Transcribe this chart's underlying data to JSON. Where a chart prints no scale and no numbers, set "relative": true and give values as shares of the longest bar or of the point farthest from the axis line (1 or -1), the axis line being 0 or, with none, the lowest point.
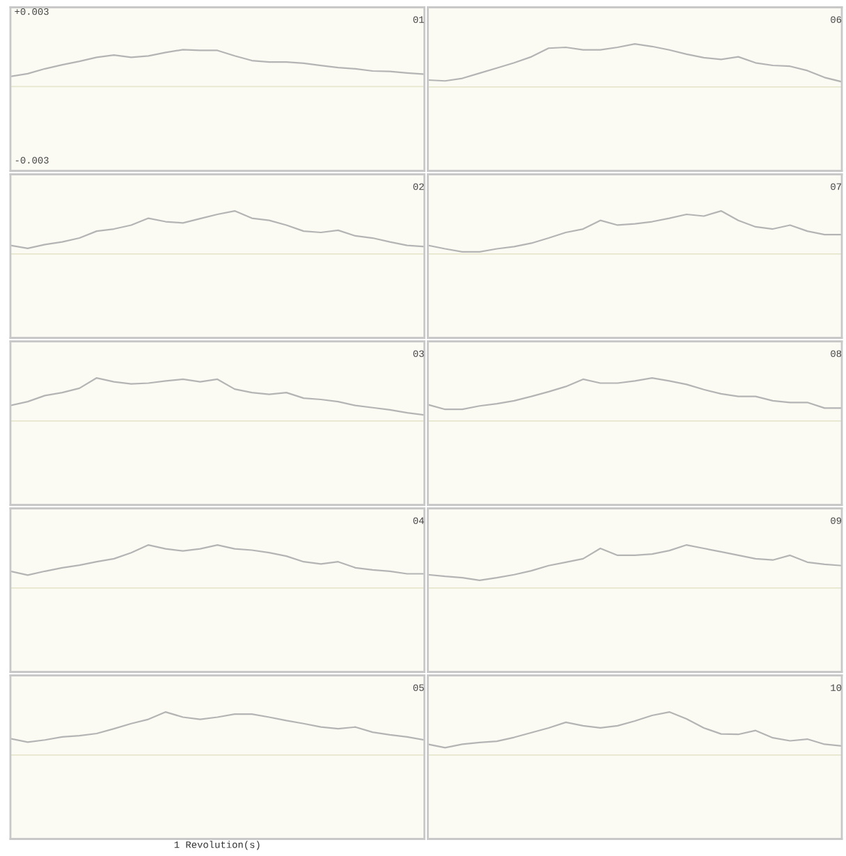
{
  "chart_data": [
    {
      "type": "line",
      "title": "01",
      "categories": [
        null,
        null,
        null,
        null,
        null,
        null,
        null,
        null,
        null,
        null,
        null,
        null,
        null,
        null,
        null,
        null,
        null,
        null,
        null,
        null,
        null,
        null,
        null,
        null,
        null
      ],
      "series": [
        {
          "color": "#b4b4b4",
          "values": [
            0.00041,
            0.00052,
            0.00072,
            0.00088,
            0.00102,
            0.00118,
            0.00127,
            0.00118,
            0.00124,
            0.00138,
            0.00149,
            0.00146,
            0.00146,
            0.00124,
            0.00105,
            0.00099,
            0.00099,
            0.00094,
            0.00085,
            0.00077,
            0.00072,
            0.00063,
            0.00061,
            0.00055,
            0.0005
          ]
        }
      ],
      "ylim": [
        -0.0034,
        0.0032
      ],
      "yticks": [
        {
          "value": 0.003,
          "label": "+0.003"
        },
        {
          "value": -0.003,
          "label": "-0.003"
        }
      ],
      "tick_labels": "y",
      "ref_lines": [
        {
          "axis": "y",
          "value": 0,
          "color": "#e6e6cc"
        }
      ]
    },
    {
      "type": "line",
      "title": "06",
      "relative": true,
      "categories": [
        null,
        null,
        null,
        null,
        null,
        null,
        null,
        null,
        null,
        null,
        null,
        null,
        null,
        null,
        null,
        null,
        null,
        null,
        null,
        null,
        null,
        null,
        null,
        null,
        null
      ],
      "series": [
        {
          "color": "#b4b4b4",
          "values": [
            0.16,
            0.14,
            0.2,
            0.32,
            0.44,
            0.56,
            0.7,
            0.9,
            0.92,
            0.86,
            0.86,
            0.92,
            1,
            0.94,
            0.86,
            0.76,
            0.68,
            0.64,
            0.7,
            0.56,
            0.5,
            0.48,
            0.38,
            0.22,
            0.12
          ]
        }
      ],
      "tick_labels": false,
      "ref_lines": [
        {
          "axis": "y",
          "value": 0,
          "color": "#e6e6cc"
        }
      ]
    },
    {
      "type": "line",
      "title": "02",
      "relative": true,
      "categories": [
        null,
        null,
        null,
        null,
        null,
        null,
        null,
        null,
        null,
        null,
        null,
        null,
        null,
        null,
        null,
        null,
        null,
        null,
        null,
        null,
        null,
        null,
        null,
        null,
        null
      ],
      "series": [
        {
          "color": "#b4b4b4",
          "values": [
            0.2,
            0.13,
            0.22,
            0.28,
            0.37,
            0.53,
            0.58,
            0.67,
            0.83,
            0.75,
            0.72,
            0.82,
            0.92,
            1,
            0.83,
            0.78,
            0.67,
            0.53,
            0.5,
            0.55,
            0.42,
            0.37,
            0.28,
            0.2,
            0.17
          ]
        }
      ],
      "tick_labels": false,
      "ref_lines": [
        {
          "axis": "y",
          "value": 0,
          "color": "#e6e6cc"
        }
      ]
    },
    {
      "type": "line",
      "title": "07",
      "relative": true,
      "categories": [
        null,
        null,
        null,
        null,
        null,
        null,
        null,
        null,
        null,
        null,
        null,
        null,
        null,
        null,
        null,
        null,
        null,
        null,
        null,
        null,
        null,
        null,
        null,
        null,
        null
      ],
      "series": [
        {
          "color": "#b4b4b4",
          "values": [
            0.2,
            0.12,
            0.05,
            0.05,
            0.12,
            0.17,
            0.25,
            0.37,
            0.5,
            0.58,
            0.78,
            0.67,
            0.7,
            0.75,
            0.83,
            0.92,
            0.88,
            1,
            0.78,
            0.63,
            0.58,
            0.67,
            0.53,
            0.45,
            0.45
          ]
        }
      ],
      "tick_labels": false,
      "ref_lines": [
        {
          "axis": "y",
          "value": 0,
          "color": "#e6e6cc"
        }
      ]
    },
    {
      "type": "line",
      "title": "03",
      "relative": true,
      "categories": [
        null,
        null,
        null,
        null,
        null,
        null,
        null,
        null,
        null,
        null,
        null,
        null,
        null,
        null,
        null,
        null,
        null,
        null,
        null,
        null,
        null,
        null,
        null,
        null,
        null
      ],
      "series": [
        {
          "color": "#b4b4b4",
          "values": [
            0.36,
            0.45,
            0.59,
            0.66,
            0.76,
            1,
            0.91,
            0.86,
            0.88,
            0.93,
            0.97,
            0.91,
            0.97,
            0.74,
            0.66,
            0.62,
            0.66,
            0.53,
            0.5,
            0.45,
            0.36,
            0.31,
            0.26,
            0.19,
            0.14
          ]
        }
      ],
      "tick_labels": false,
      "ref_lines": [
        {
          "axis": "y",
          "value": 0,
          "color": "#e6e6cc"
        }
      ]
    },
    {
      "type": "line",
      "title": "08",
      "relative": true,
      "categories": [
        null,
        null,
        null,
        null,
        null,
        null,
        null,
        null,
        null,
        null,
        null,
        null,
        null,
        null,
        null,
        null,
        null,
        null,
        null,
        null,
        null,
        null,
        null,
        null,
        null
      ],
      "series": [
        {
          "color": "#b4b4b4",
          "values": [
            0.38,
            0.27,
            0.27,
            0.35,
            0.4,
            0.47,
            0.57,
            0.68,
            0.8,
            0.97,
            0.88,
            0.88,
            0.93,
            1,
            0.93,
            0.85,
            0.73,
            0.63,
            0.57,
            0.57,
            0.47,
            0.43,
            0.43,
            0.3,
            0.3
          ]
        }
      ],
      "tick_labels": false,
      "ref_lines": [
        {
          "axis": "y",
          "value": 0,
          "color": "#e6e6cc"
        }
      ]
    },
    {
      "type": "line",
      "title": "04",
      "relative": true,
      "categories": [
        null,
        null,
        null,
        null,
        null,
        null,
        null,
        null,
        null,
        null,
        null,
        null,
        null,
        null,
        null,
        null,
        null,
        null,
        null,
        null,
        null,
        null,
        null,
        null,
        null
      ],
      "series": [
        {
          "color": "#b4b4b4",
          "values": [
            0.39,
            0.3,
            0.39,
            0.47,
            0.53,
            0.61,
            0.68,
            0.82,
            1,
            0.91,
            0.86,
            0.91,
            1,
            0.91,
            0.88,
            0.82,
            0.74,
            0.61,
            0.56,
            0.61,
            0.47,
            0.42,
            0.39,
            0.33,
            0.33
          ]
        }
      ],
      "tick_labels": false,
      "ref_lines": [
        {
          "axis": "y",
          "value": 0,
          "color": "#e6e6cc"
        }
      ]
    },
    {
      "type": "line",
      "title": "09",
      "relative": true,
      "categories": [
        null,
        null,
        null,
        null,
        null,
        null,
        null,
        null,
        null,
        null,
        null,
        null,
        null,
        null,
        null,
        null,
        null,
        null,
        null,
        null,
        null,
        null,
        null,
        null,
        null
      ],
      "series": [
        {
          "color": "#b4b4b4",
          "values": [
            0.31,
            0.27,
            0.24,
            0.18,
            0.24,
            0.31,
            0.4,
            0.52,
            0.6,
            0.68,
            0.92,
            0.76,
            0.76,
            0.79,
            0.87,
            1,
            0.92,
            0.84,
            0.76,
            0.68,
            0.65,
            0.76,
            0.6,
            0.55,
            0.52
          ]
        }
      ],
      "tick_labels": false,
      "ref_lines": [
        {
          "axis": "y",
          "value": 0,
          "color": "#e6e6cc"
        }
      ]
    },
    {
      "type": "line",
      "title": "05",
      "relative": true,
      "xlabel": "1 Revolution(s)",
      "categories": [
        null,
        null,
        null,
        null,
        null,
        null,
        null,
        null,
        null,
        null,
        null,
        null,
        null,
        null,
        null,
        null,
        null,
        null,
        null,
        null,
        null,
        null,
        null,
        null,
        null
      ],
      "series": [
        {
          "color": "#b4b4b4",
          "values": [
            0.38,
            0.3,
            0.35,
            0.42,
            0.45,
            0.5,
            0.61,
            0.73,
            0.83,
            1,
            0.88,
            0.83,
            0.88,
            0.95,
            0.95,
            0.88,
            0.8,
            0.73,
            0.65,
            0.61,
            0.65,
            0.53,
            0.47,
            0.42,
            0.35
          ]
        }
      ],
      "tick_labels": false,
      "ref_lines": [
        {
          "axis": "y",
          "value": 0,
          "color": "#e6e6cc"
        }
      ]
    },
    {
      "type": "line",
      "title": "10",
      "relative": true,
      "categories": [
        null,
        null,
        null,
        null,
        null,
        null,
        null,
        null,
        null,
        null,
        null,
        null,
        null,
        null,
        null,
        null,
        null,
        null,
        null,
        null,
        null,
        null,
        null,
        null,
        null
      ],
      "series": [
        {
          "color": "#b4b4b4",
          "values": [
            0.25,
            0.17,
            0.25,
            0.29,
            0.32,
            0.41,
            0.52,
            0.63,
            0.76,
            0.68,
            0.63,
            0.68,
            0.79,
            0.92,
            1,
            0.84,
            0.63,
            0.49,
            0.48,
            0.57,
            0.4,
            0.33,
            0.37,
            0.25,
            0.21
          ]
        }
      ],
      "tick_labels": false,
      "ref_lines": [
        {
          "axis": "y",
          "value": 0,
          "color": "#e6e6cc"
        }
      ]
    }
  ]
}
